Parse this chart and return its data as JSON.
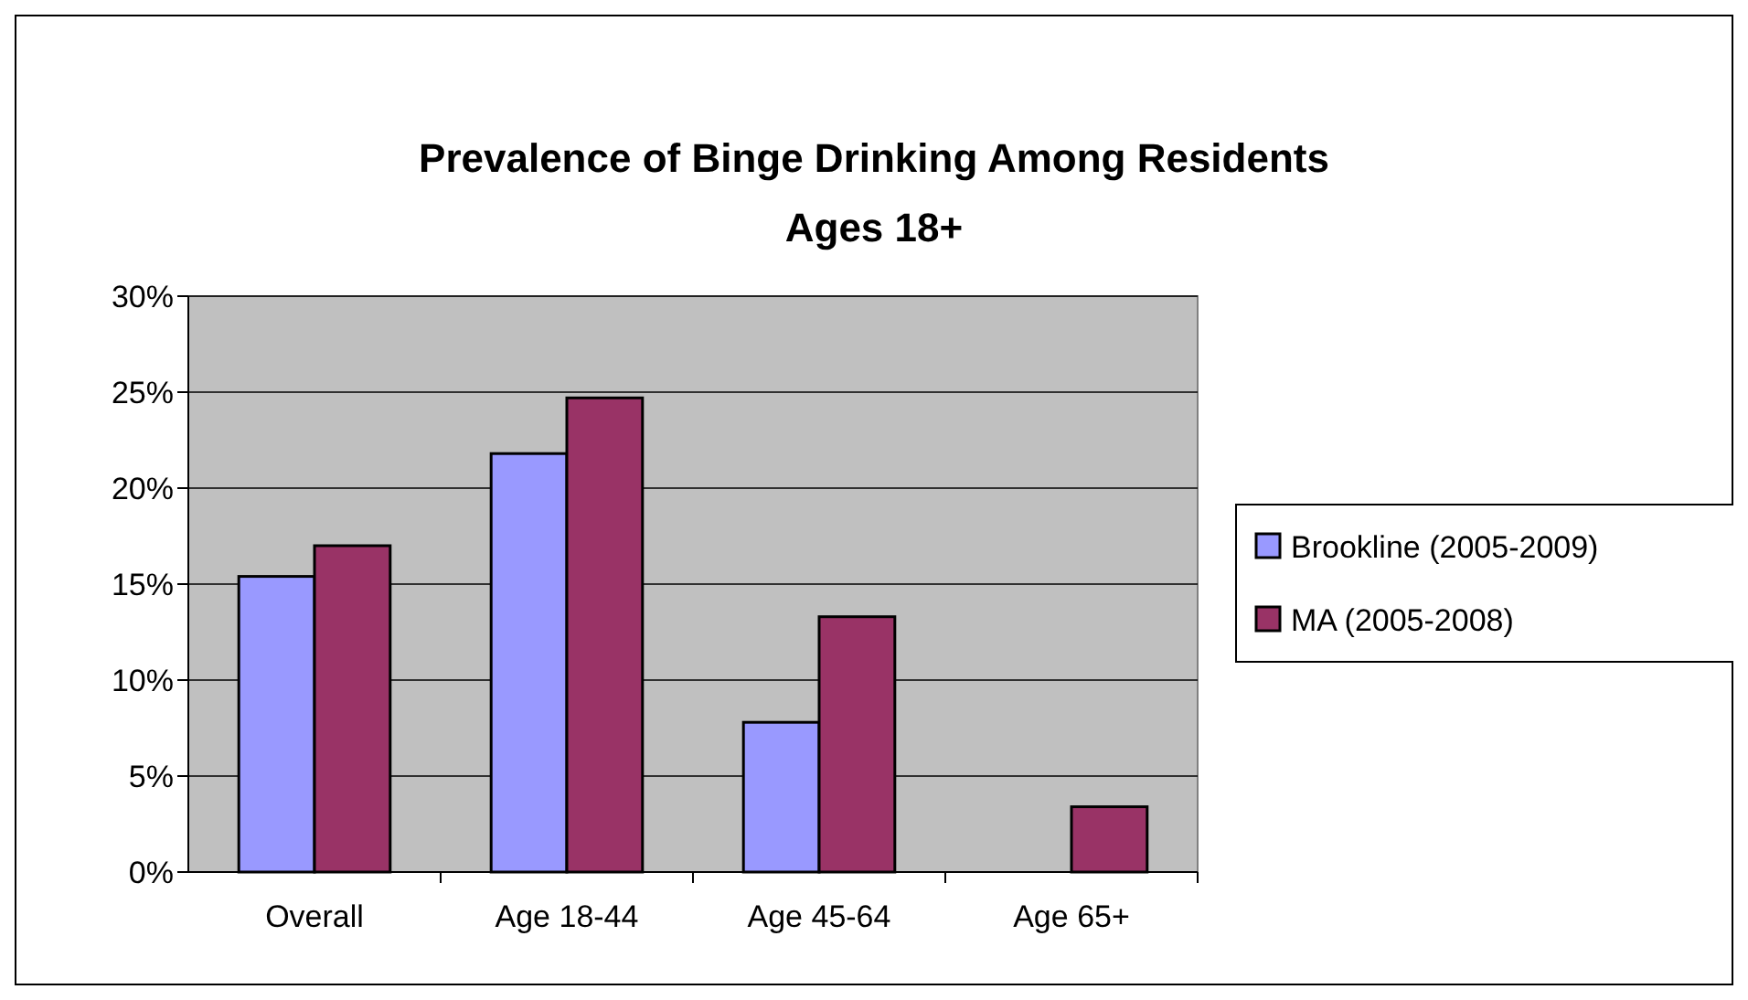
{
  "chart_data": {
    "type": "bar",
    "title": "Prevalence of Binge Drinking Among Residents\nAges 18+",
    "categories": [
      "Overall",
      "Age 18-44",
      "Age 45-64",
      "Age 65+"
    ],
    "series": [
      {
        "name": "Brookline (2005-2009)",
        "color": "#9999ff",
        "values": [
          15.4,
          21.8,
          7.8,
          null
        ]
      },
      {
        "name": "MA (2005-2008)",
        "color": "#993366",
        "values": [
          17.0,
          24.7,
          13.3,
          3.4
        ]
      }
    ],
    "ylim": [
      0,
      30
    ],
    "yticks": [
      {
        "value": 0,
        "label": "0%"
      },
      {
        "value": 5,
        "label": "5%"
      },
      {
        "value": 10,
        "label": "10%"
      },
      {
        "value": 15,
        "label": "15%"
      },
      {
        "value": 20,
        "label": "20%"
      },
      {
        "value": 25,
        "label": "25%"
      },
      {
        "value": 30,
        "label": "30%"
      }
    ],
    "grid": "y",
    "legend": "right"
  }
}
